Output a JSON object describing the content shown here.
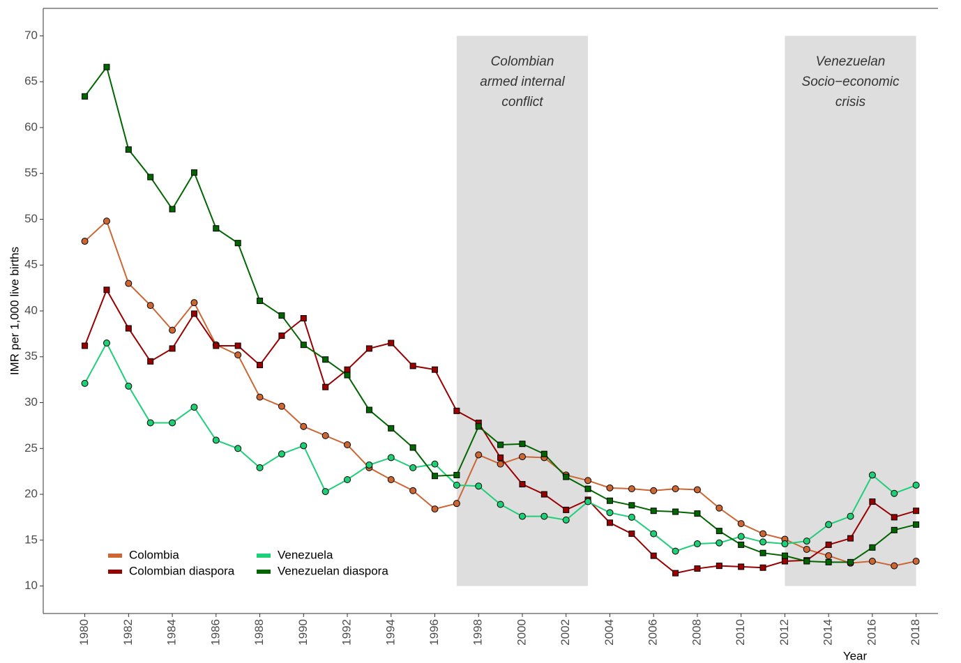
{
  "chart_data": {
    "type": "line",
    "x_label": "Year",
    "y_label": "IMR per 1,000 live births",
    "x": [
      1980,
      1981,
      1982,
      1983,
      1984,
      1985,
      1986,
      1987,
      1988,
      1989,
      1990,
      1991,
      1992,
      1993,
      1994,
      1995,
      1996,
      1997,
      1998,
      1999,
      2000,
      2001,
      2002,
      2003,
      2004,
      2005,
      2006,
      2007,
      2008,
      2009,
      2010,
      2011,
      2012,
      2013,
      2014,
      2015,
      2016,
      2017,
      2018
    ],
    "xlim": [
      1978.1,
      2019
    ],
    "xticks": [
      1980,
      1982,
      1984,
      1986,
      1988,
      1990,
      1992,
      1994,
      1996,
      1998,
      2000,
      2002,
      2004,
      2006,
      2008,
      2010,
      2012,
      2014,
      2016,
      2018
    ],
    "ylim": [
      7,
      73
    ],
    "yticks": [
      10,
      15,
      20,
      25,
      30,
      35,
      40,
      45,
      50,
      55,
      60,
      65,
      70
    ],
    "legend_position": "bottom-left",
    "shaded_regions": [
      {
        "x": [
          1997,
          2003
        ],
        "y": [
          10,
          70
        ],
        "color": "#dedede",
        "lines": [
          "Colombian",
          "armed internal",
          "conflict"
        ]
      },
      {
        "x": [
          2012,
          2018
        ],
        "y": [
          10,
          70
        ],
        "color": "#dedede",
        "lines": [
          "Venezuelan",
          "Socio−economic",
          "crisis"
        ]
      }
    ],
    "series": [
      {
        "name": "Colombia",
        "color": "#cc6633",
        "marker": "circle",
        "values": [
          47.6,
          49.8,
          43.0,
          40.6,
          37.9,
          40.9,
          36.3,
          35.2,
          30.6,
          29.6,
          27.4,
          26.4,
          25.4,
          22.9,
          21.6,
          20.4,
          18.4,
          19.0,
          24.3,
          23.3,
          24.1,
          24.0,
          22.1,
          21.5,
          20.7,
          20.6,
          20.4,
          20.6,
          20.5,
          18.5,
          16.8,
          15.7,
          15.1,
          14.0,
          13.3,
          12.5,
          12.7,
          12.2,
          12.7
        ]
      },
      {
        "name": "Colombian diaspora",
        "color": "#990000",
        "marker": "square",
        "values": [
          36.2,
          42.3,
          38.1,
          34.5,
          35.9,
          39.7,
          36.2,
          36.2,
          34.1,
          37.3,
          39.2,
          31.7,
          33.6,
          35.9,
          36.5,
          34.0,
          33.6,
          29.1,
          27.8,
          24.0,
          21.1,
          20.0,
          18.3,
          19.4,
          16.9,
          15.7,
          13.3,
          11.4,
          11.9,
          12.2,
          12.1,
          12.0,
          12.7,
          12.8,
          14.5,
          15.2,
          19.2,
          17.5,
          18.2
        ]
      },
      {
        "name": "Venezuela",
        "color": "#1fcf78",
        "marker": "circle",
        "values": [
          32.1,
          36.5,
          31.8,
          27.8,
          27.8,
          29.5,
          25.9,
          25.0,
          22.9,
          24.4,
          25.3,
          20.3,
          21.6,
          23.2,
          24.0,
          22.9,
          23.3,
          21.0,
          20.9,
          18.9,
          17.6,
          17.6,
          17.2,
          19.2,
          18.0,
          17.5,
          15.7,
          13.8,
          14.6,
          14.7,
          15.4,
          14.8,
          14.6,
          14.9,
          16.7,
          17.6,
          22.1,
          20.1,
          21.0
        ]
      },
      {
        "name": "Venezuelan diaspora",
        "color": "#006600",
        "marker": "square",
        "values": [
          63.4,
          66.6,
          57.6,
          54.6,
          51.1,
          55.1,
          49.0,
          47.4,
          41.1,
          39.5,
          36.3,
          34.7,
          33.0,
          29.2,
          27.2,
          25.1,
          22.0,
          22.1,
          27.4,
          25.4,
          25.5,
          24.4,
          21.9,
          20.6,
          19.3,
          18.8,
          18.2,
          18.1,
          17.9,
          16.0,
          14.5,
          13.6,
          13.3,
          12.7,
          12.6,
          12.6,
          14.2,
          16.1,
          16.7
        ]
      }
    ]
  }
}
